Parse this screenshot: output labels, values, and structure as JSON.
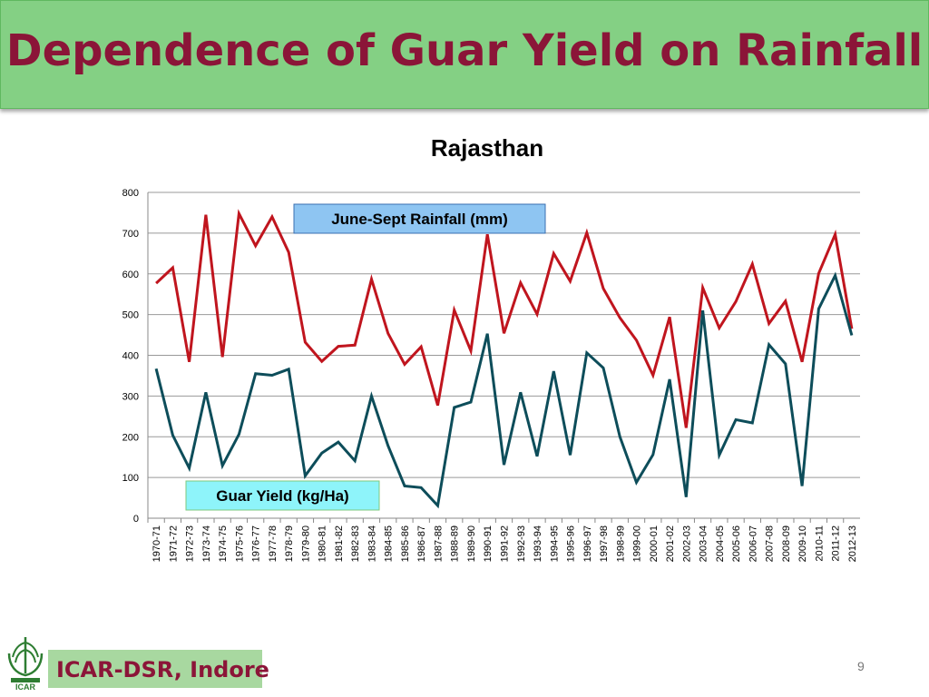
{
  "slide": {
    "title": "Dependence of Guar Yield on Rainfall",
    "footer": "ICAR-DSR, Indore",
    "page_number": "9",
    "logo_text": "ICAR"
  },
  "colors": {
    "banner": "#84d084",
    "title": "#8b1538",
    "rainfall": "#c0151e",
    "yield": "#0d4d5a",
    "rainfall_label_bg": "#8ec5f2",
    "yield_label_bg": "#8ef4fa"
  },
  "chart_data": {
    "type": "line",
    "title": "Rajasthan",
    "xlabel": "",
    "ylabel": "",
    "ylim": [
      0,
      800
    ],
    "yticks": [
      0,
      100,
      200,
      300,
      400,
      500,
      600,
      700,
      800
    ],
    "grid": true,
    "categories": [
      "1970-71",
      "1971-72",
      "1972-73",
      "1973-74",
      "1974-75",
      "1975-76",
      "1976-77",
      "1977-78",
      "1978-79",
      "1979-80",
      "1980-81",
      "1981-82",
      "1982-83",
      "1983-84",
      "1984-85",
      "1985-86",
      "1986-87",
      "1987-88",
      "1988-89",
      "1989-90",
      "1990-91",
      "1991-92",
      "1992-93",
      "1993-94",
      "1994-95",
      "1995-96",
      "1996-97",
      "1997-98",
      "1998-99",
      "1999-00",
      "2000-01",
      "2001-02",
      "2002-03",
      "2003-04",
      "2004-05",
      "2005-06",
      "2006-07",
      "2007-08",
      "2008-09",
      "2009-10",
      "2010-11",
      "2011-12",
      "2012-13"
    ],
    "series": [
      {
        "name": "June-Sept Rainfall (mm)",
        "color": "#c0151e",
        "values": [
          577,
          615,
          384,
          745,
          396,
          748,
          669,
          740,
          653,
          432,
          385,
          422,
          425,
          587,
          454,
          378,
          421,
          277,
          511,
          411,
          697,
          454,
          578,
          501,
          650,
          582,
          701,
          564,
          492,
          437,
          351,
          494,
          222,
          566,
          467,
          532,
          624,
          478,
          533,
          384,
          601,
          697,
          465
        ]
      },
      {
        "name": "Guar Yield (kg/Ha)",
        "color": "#0d4d5a",
        "values": [
          367,
          204,
          123,
          309,
          129,
          206,
          355,
          351,
          366,
          104,
          160,
          187,
          141,
          300,
          178,
          79,
          75,
          31,
          272,
          285,
          453,
          131,
          309,
          152,
          361,
          155,
          406,
          369,
          200,
          88,
          156,
          341,
          52,
          510,
          155,
          242,
          234,
          426,
          379,
          79,
          514,
          596,
          449
        ]
      }
    ]
  }
}
